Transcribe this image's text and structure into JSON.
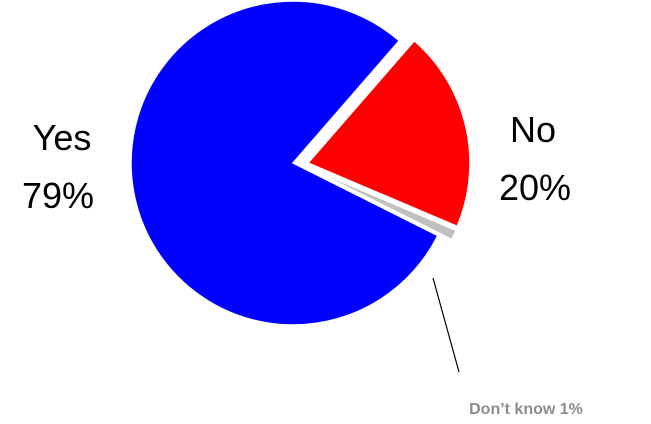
{
  "chart_data": {
    "type": "pie",
    "categories": [
      "Yes",
      "No",
      "Don’t know"
    ],
    "values": [
      79,
      20,
      1
    ],
    "labels": {
      "yes": {
        "name": "Yes",
        "value": "79%"
      },
      "no": {
        "name": "No",
        "value": "20%"
      },
      "dont_know": {
        "text": "Don’t know 1%"
      }
    },
    "colors": [
      "#0000ff",
      "#ff0000",
      "#c0c0c0"
    ],
    "exploded": [
      "No",
      "Don’t know"
    ],
    "legend": "none"
  }
}
